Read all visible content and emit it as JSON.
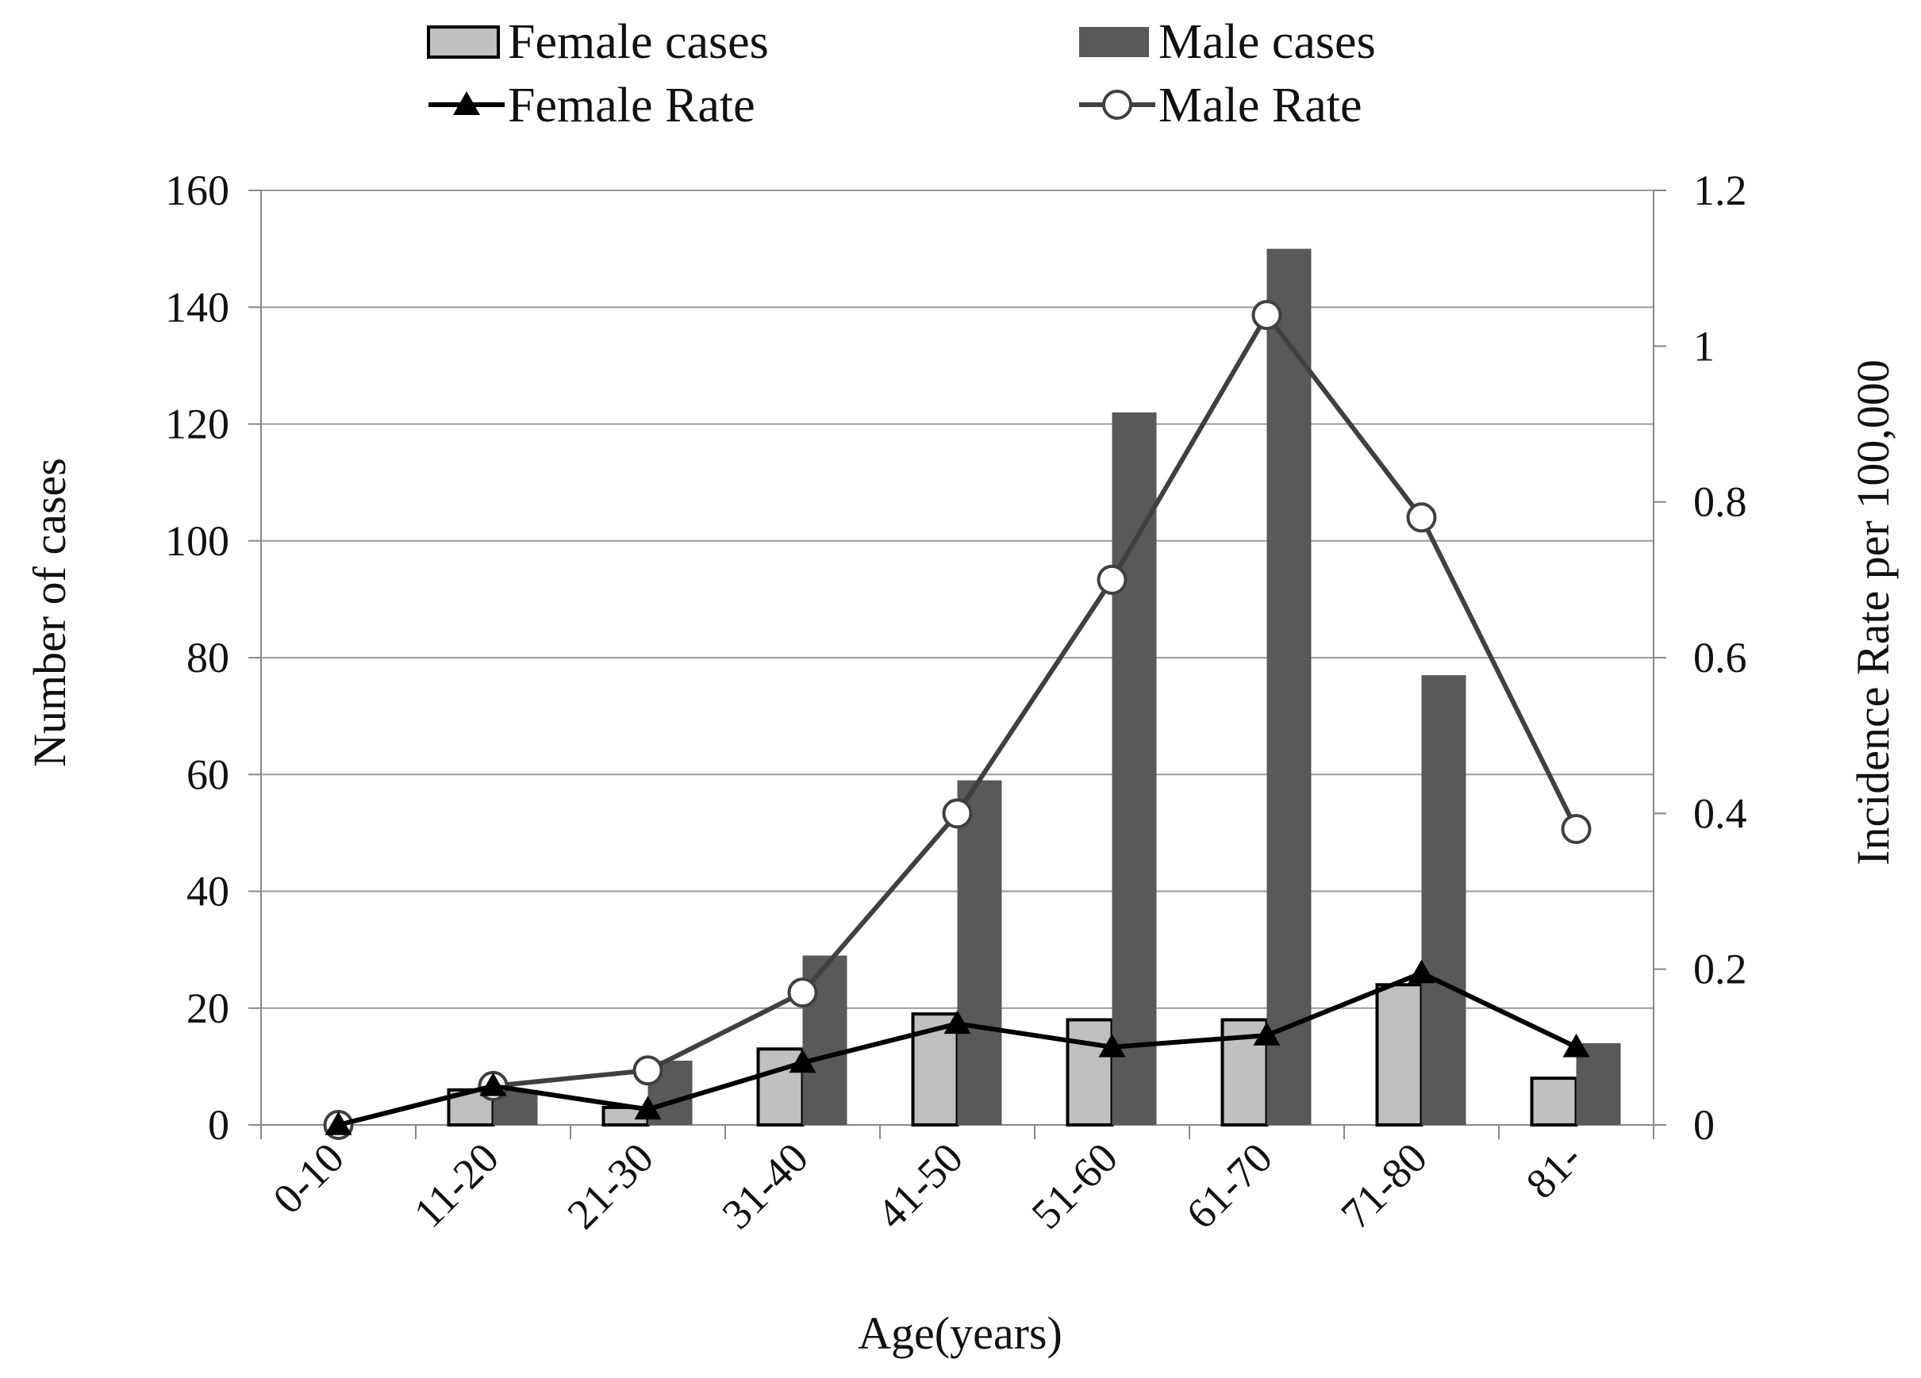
{
  "chart_data": {
    "type": "bar+line",
    "categories": [
      "0-10",
      "11-20",
      "21-30",
      "31-40",
      "41-50",
      "51-60",
      "61-70",
      "71-80",
      "81-"
    ],
    "bar_series": [
      {
        "name": "Female cases",
        "values": [
          0,
          6,
          3,
          13,
          19,
          18,
          18,
          24,
          8
        ],
        "color": "#c0c0c0"
      },
      {
        "name": "Male cases",
        "values": [
          0,
          6,
          11,
          29,
          59,
          122,
          150,
          77,
          14
        ],
        "color": "#595959"
      }
    ],
    "line_series": [
      {
        "name": "Female Rate",
        "values": [
          0,
          0.05,
          0.02,
          0.08,
          0.13,
          0.1,
          0.115,
          0.195,
          0.1
        ],
        "color": "#000000",
        "marker": "triangle"
      },
      {
        "name": "Male Rate",
        "values": [
          0,
          0.05,
          0.07,
          0.17,
          0.4,
          0.7,
          1.04,
          0.78,
          0.38
        ],
        "color": "#404040",
        "marker": "circle"
      }
    ],
    "xlabel": "Age(years)",
    "ylabel": "Number of cases",
    "y2label": "Incidence Rate per 100,000",
    "ylim": [
      0,
      160
    ],
    "yticks": [
      0,
      20,
      40,
      60,
      80,
      100,
      120,
      140,
      160
    ],
    "y2lim": [
      0,
      1.2
    ],
    "y2ticks": [
      "0",
      "0.2",
      "0.4",
      "0.6",
      "0.8",
      "1",
      "1.2"
    ],
    "grid": true,
    "legend_position": "top"
  }
}
